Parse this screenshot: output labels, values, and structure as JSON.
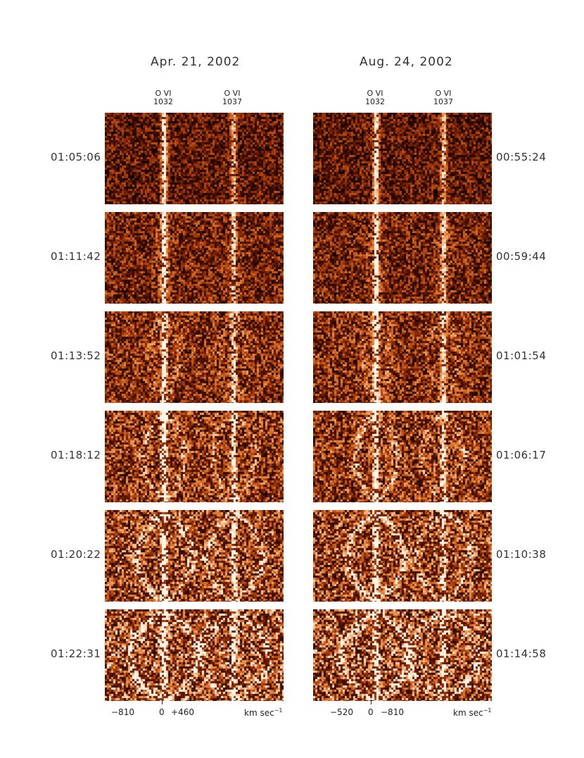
{
  "columns": [
    {
      "title": "Apr. 21, 2002",
      "lines": [
        {
          "ion": "O VI",
          "wavelength": "1032"
        },
        {
          "ion": "O VI",
          "wavelength": "1037"
        }
      ],
      "times": [
        "01:05:06",
        "01:11:42",
        "01:13:52",
        "01:18:12",
        "01:20:22",
        "01:22:31"
      ],
      "ticks": [
        "−810",
        "0",
        "+460"
      ],
      "unit": "km sec",
      "unit_exp": "−1"
    },
    {
      "title": "Aug. 24, 2002",
      "lines": [
        {
          "ion": "O VI",
          "wavelength": "1032"
        },
        {
          "ion": "O VI",
          "wavelength": "1037"
        }
      ],
      "times": [
        "00:55:24",
        "00:59:44",
        "01:01:54",
        "01:06:17",
        "01:10:38",
        "01:14:58"
      ],
      "ticks": [
        "−520",
        "0",
        "−810"
      ],
      "unit": "km sec",
      "unit_exp": "−1"
    }
  ],
  "colormap": [
    "#000000",
    "#5a1400",
    "#a33a0a",
    "#d8702c",
    "#f4a86a",
    "#fff6e6"
  ]
}
